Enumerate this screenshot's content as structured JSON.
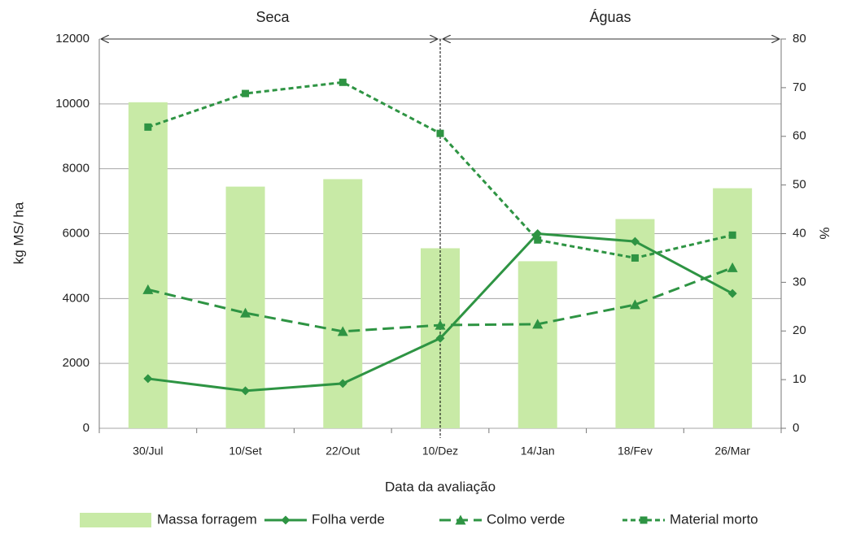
{
  "chart_data": {
    "type": "bar",
    "categories": [
      "30/Jul",
      "10/Set",
      "22/Out",
      "10/Dez",
      "14/Jan",
      "18/Fev",
      "26/Mar"
    ],
    "series": [
      {
        "name": "Massa forragem",
        "type": "bar",
        "color": "#c8eaa6",
        "values": [
          10050,
          7450,
          7680,
          5550,
          5150,
          6450,
          7400
        ]
      },
      {
        "name": "Folha verde",
        "type": "line",
        "axis": "y2",
        "color": "#2e9443",
        "dash": "solid",
        "marker": "diamond",
        "values": [
          10.2,
          7.7,
          9.2,
          18.5,
          40,
          38.4,
          27.7
        ]
      },
      {
        "name": "Colmo verde",
        "type": "line",
        "axis": "y2",
        "color": "#2e9443",
        "dash": "long-dash",
        "marker": "triangle",
        "values": [
          28.5,
          23.7,
          19.9,
          21.2,
          21.4,
          25.4,
          33
        ]
      },
      {
        "name": "Material morto",
        "type": "line",
        "axis": "y2",
        "color": "#2e9443",
        "dash": "short-dash",
        "marker": "square",
        "values": [
          61.9,
          68.8,
          71.1,
          60.6,
          38.7,
          35,
          39.7
        ]
      }
    ],
    "ylabel": "kg MS/ ha",
    "y2label": "%",
    "xlabel": "Data da avaliação",
    "annotations": [
      "Seca",
      "Águas"
    ],
    "ylim": [
      0,
      12000
    ],
    "yticks": [
      0,
      2000,
      4000,
      6000,
      8000,
      10000,
      12000
    ],
    "y2lim": [
      0,
      80
    ],
    "y2ticks": [
      0,
      10,
      20,
      30,
      40,
      50,
      60,
      70,
      80
    ],
    "grid": true,
    "legend": "bottom"
  }
}
